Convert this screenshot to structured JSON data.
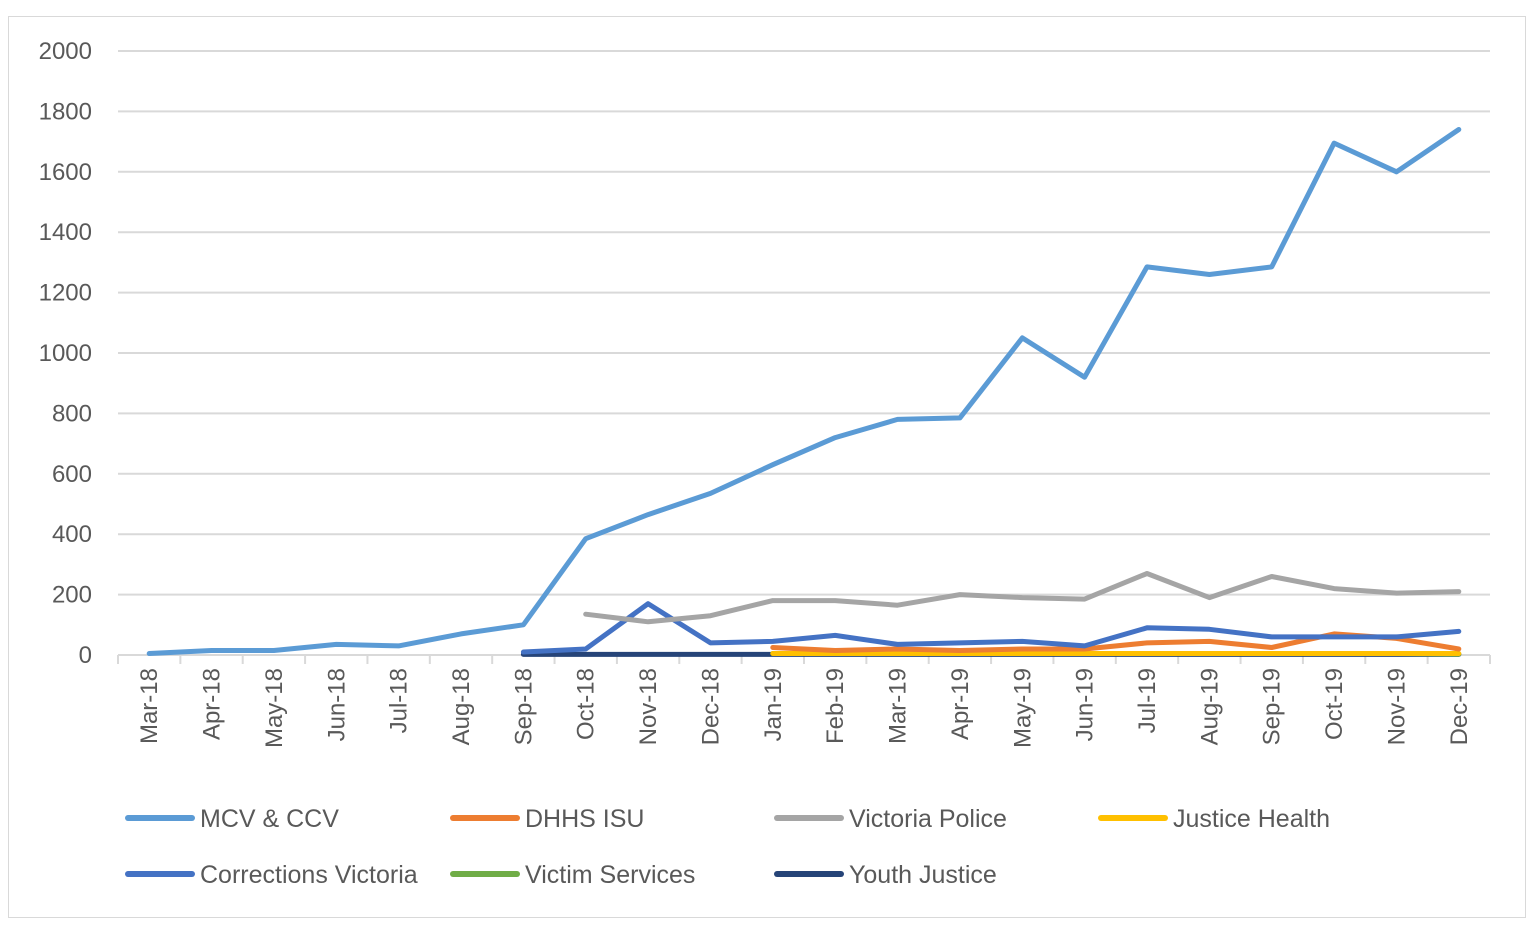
{
  "chart_data": {
    "type": "line",
    "title": "",
    "xlabel": "",
    "ylabel": "",
    "ylim": [
      0,
      2000
    ],
    "yticks": [
      0,
      200,
      400,
      600,
      800,
      1000,
      1200,
      1400,
      1600,
      1800,
      2000
    ],
    "ytick_labels": [
      "0",
      "200",
      "400",
      "600",
      "800",
      "1000",
      "1200",
      "1400",
      "1600",
      "1800",
      "2000"
    ],
    "grid": true,
    "legend_position": "bottom",
    "categories": [
      "Mar-18",
      "Apr-18",
      "May-18",
      "Jun-18",
      "Jul-18",
      "Aug-18",
      "Sep-18",
      "Oct-18",
      "Nov-18",
      "Dec-18",
      "Jan-19",
      "Feb-19",
      "Mar-19",
      "Apr-19",
      "May-19",
      "Jun-19",
      "Jul-19",
      "Aug-19",
      "Sep-19",
      "Oct-19",
      "Nov-19",
      "Dec-19"
    ],
    "series": [
      {
        "name": "MCV & CCV",
        "color": "#5b9bd5",
        "values": [
          5,
          15,
          15,
          35,
          30,
          70,
          100,
          385,
          465,
          535,
          630,
          720,
          780,
          785,
          1050,
          920,
          1285,
          1260,
          1285,
          1695,
          1600,
          1740
        ]
      },
      {
        "name": "DHHS ISU",
        "color": "#ed7d31",
        "values": [
          null,
          null,
          null,
          null,
          null,
          null,
          null,
          null,
          null,
          null,
          25,
          15,
          20,
          15,
          20,
          20,
          40,
          45,
          25,
          70,
          55,
          20
        ]
      },
      {
        "name": "Victoria Police",
        "color": "#a5a5a5",
        "values": [
          null,
          null,
          null,
          null,
          null,
          null,
          null,
          135,
          110,
          130,
          180,
          180,
          165,
          200,
          190,
          185,
          270,
          190,
          260,
          220,
          205,
          210
        ]
      },
      {
        "name": "Justice Health",
        "color": "#ffc000",
        "values": [
          null,
          null,
          null,
          null,
          null,
          null,
          null,
          null,
          null,
          null,
          5,
          5,
          5,
          5,
          5,
          5,
          5,
          5,
          5,
          5,
          5,
          5
        ]
      },
      {
        "name": "Corrections Victoria",
        "color": "#4472c4",
        "values": [
          null,
          null,
          null,
          null,
          null,
          null,
          10,
          20,
          170,
          40,
          45,
          65,
          35,
          40,
          45,
          30,
          90,
          85,
          60,
          60,
          60,
          78
        ]
      },
      {
        "name": "Victim Services",
        "color": "#70ad47",
        "values": [
          null,
          null,
          null,
          null,
          null,
          null,
          null,
          null,
          null,
          null,
          5,
          5,
          5,
          5,
          5,
          5,
          5,
          5,
          5,
          5,
          5,
          3
        ]
      },
      {
        "name": "Youth Justice",
        "color": "#264478",
        "values": [
          null,
          null,
          null,
          null,
          null,
          null,
          2,
          2,
          2,
          2,
          2,
          2,
          2,
          2,
          2,
          2,
          2,
          2,
          2,
          2,
          2,
          2
        ]
      }
    ]
  }
}
